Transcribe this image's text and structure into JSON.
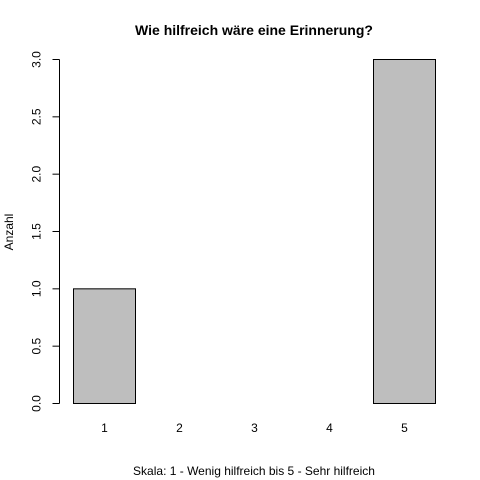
{
  "chart_data": {
    "type": "bar",
    "title": "Wie hilfreich wäre eine Erinnerung?",
    "xlabel": "Skala: 1 - Wenig hilfreich bis 5 - Sehr hilfreich",
    "ylabel": "Anzahl",
    "categories": [
      "1",
      "2",
      "3",
      "4",
      "5"
    ],
    "values": [
      1,
      0,
      0,
      0,
      3
    ],
    "ylim": [
      0,
      3
    ],
    "yticks": [
      "0.0",
      "0.5",
      "1.0",
      "1.5",
      "2.0",
      "2.5",
      "3.0"
    ],
    "grid": false,
    "bar_color": "#bebebe",
    "border_color": "#000000"
  }
}
